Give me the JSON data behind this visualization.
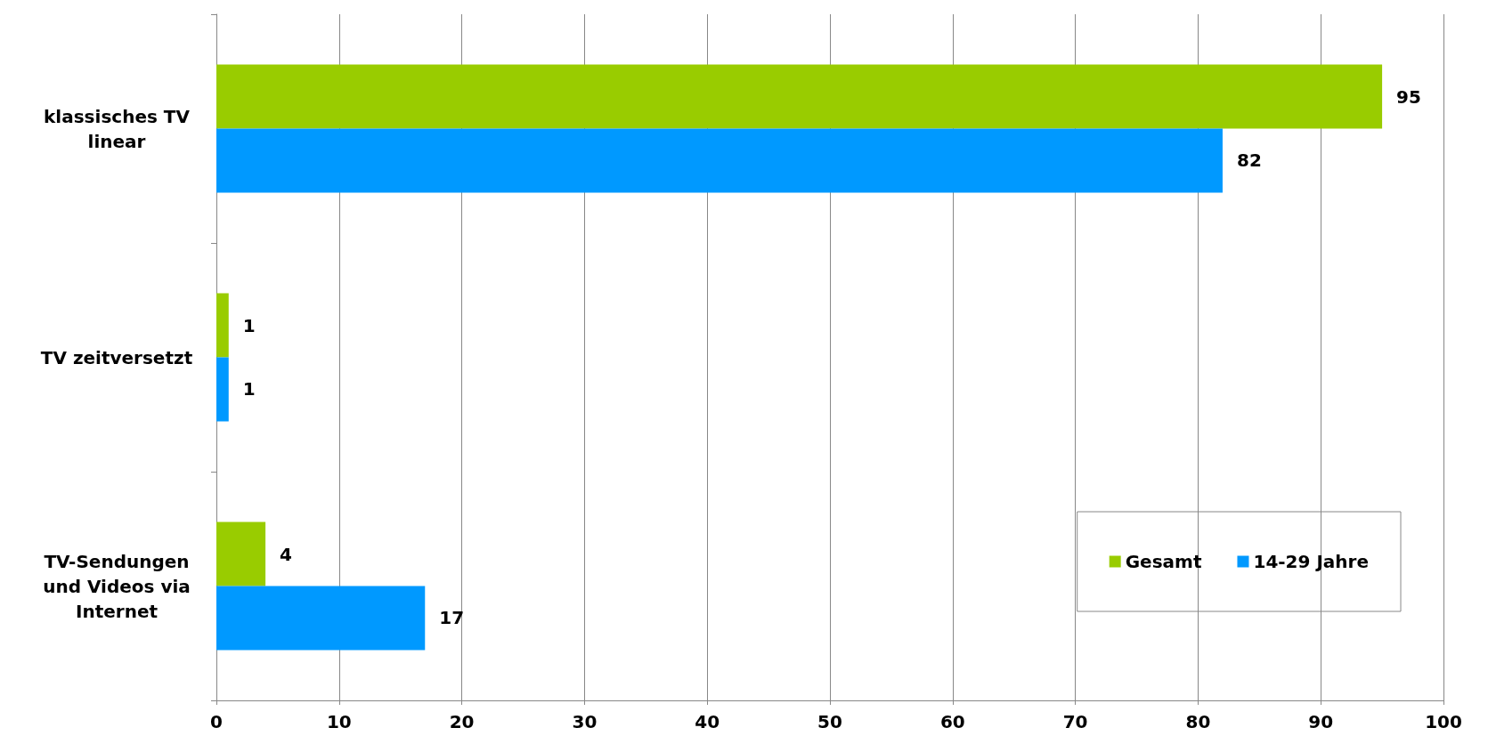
{
  "chart_data": {
    "type": "bar",
    "orientation": "horizontal",
    "categories": [
      "klassisches TV\nlinear",
      "TV zeitversetzt",
      "TV-Sendungen\nund Videos via\nInternet"
    ],
    "series": [
      {
        "name": "Gesamt",
        "color": "#99cc00",
        "values": [
          95,
          1,
          4
        ]
      },
      {
        "name": "14-29 Jahre",
        "color": "#0099ff",
        "values": [
          82,
          1,
          17
        ]
      }
    ],
    "xlim": [
      0,
      100
    ],
    "xticks": [
      0,
      10,
      20,
      30,
      40,
      50,
      60,
      70,
      80,
      90,
      100
    ],
    "grid": "x",
    "legend": "bottom right",
    "data_labels": true
  }
}
